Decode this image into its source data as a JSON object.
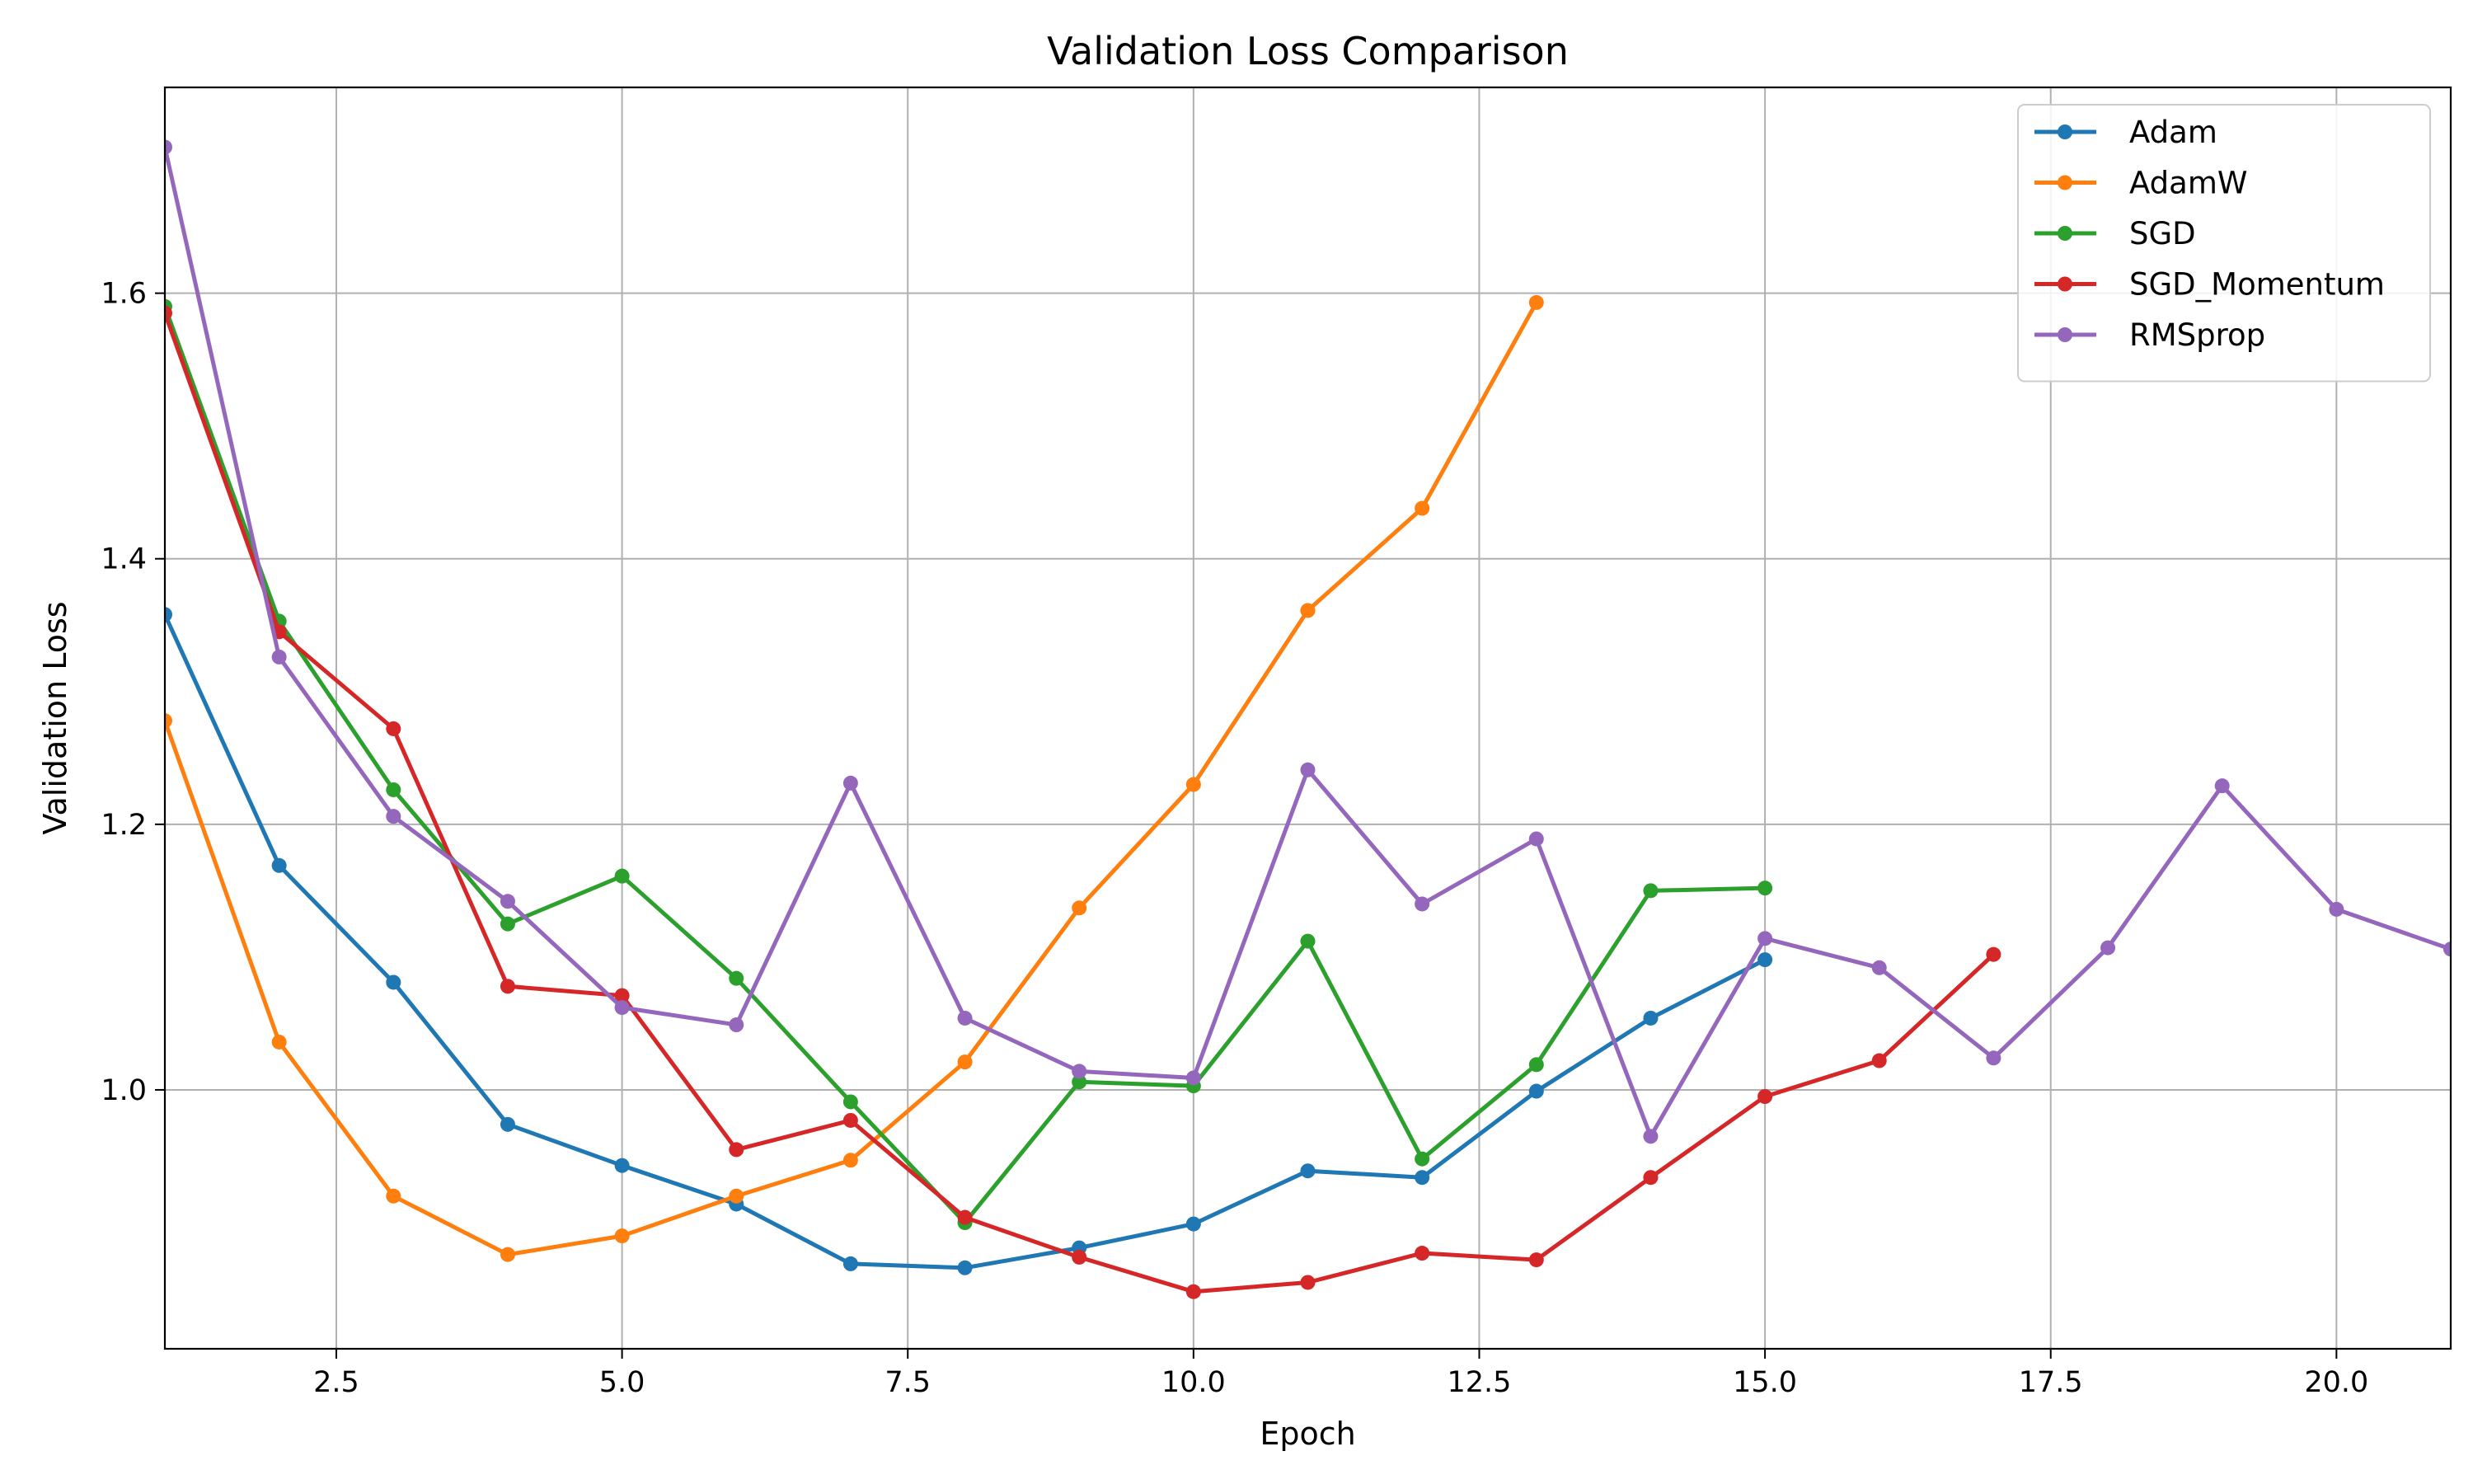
{
  "chart_data": {
    "type": "line",
    "title": "Validation Loss Comparison",
    "xlabel": "Epoch",
    "ylabel": "Validation Loss",
    "xlim": [
      1,
      21
    ],
    "ylim": [
      0.805,
      1.755
    ],
    "xticks": [
      2.5,
      5.0,
      7.5,
      10.0,
      12.5,
      15.0,
      17.5,
      20.0
    ],
    "xtick_labels": [
      "2.5",
      "5.0",
      "7.5",
      "10.0",
      "12.5",
      "15.0",
      "17.5",
      "20.0"
    ],
    "yticks": [
      1.0,
      1.2,
      1.4,
      1.6
    ],
    "ytick_labels": [
      "1.0",
      "1.2",
      "1.4",
      "1.6"
    ],
    "grid": true,
    "legend_position": "top-right",
    "series": [
      {
        "name": "Adam",
        "color": "#1f77b4",
        "x": [
          1,
          2,
          3,
          4,
          5,
          6,
          7,
          8,
          9,
          10,
          11,
          12,
          13,
          14,
          15
        ],
        "y": [
          1.358,
          1.169,
          1.081,
          0.974,
          0.943,
          0.914,
          0.869,
          0.866,
          0.881,
          0.899,
          0.939,
          0.934,
          0.999,
          1.054,
          1.098
        ]
      },
      {
        "name": "AdamW",
        "color": "#ff7f0e",
        "x": [
          1,
          2,
          3,
          4,
          5,
          6,
          7,
          8,
          9,
          10,
          11,
          12,
          13
        ],
        "y": [
          1.278,
          1.036,
          0.92,
          0.876,
          0.89,
          0.92,
          0.947,
          1.021,
          1.137,
          1.23,
          1.361,
          1.438,
          1.593
        ]
      },
      {
        "name": "SGD",
        "color": "#2ca02c",
        "x": [
          1,
          2,
          3,
          4,
          5,
          6,
          7,
          8,
          9,
          10,
          11,
          12,
          13,
          14,
          15
        ],
        "y": [
          1.59,
          1.353,
          1.226,
          1.125,
          1.161,
          1.084,
          0.991,
          0.9,
          1.006,
          1.003,
          1.112,
          0.948,
          1.019,
          1.15,
          1.152
        ]
      },
      {
        "name": "SGD_Momentum",
        "color": "#d62728",
        "x": [
          1,
          2,
          3,
          4,
          5,
          6,
          7,
          8,
          9,
          10,
          11,
          12,
          13,
          14,
          15,
          16,
          17
        ],
        "y": [
          1.585,
          1.345,
          1.272,
          1.078,
          1.071,
          0.955,
          0.977,
          0.904,
          0.874,
          0.848,
          0.855,
          0.877,
          0.872,
          0.934,
          0.995,
          1.022,
          1.102
        ]
      },
      {
        "name": "RMSprop",
        "color": "#9467bd",
        "x": [
          1,
          2,
          3,
          4,
          5,
          6,
          7,
          8,
          9,
          10,
          11,
          12,
          13,
          14,
          15,
          16,
          17,
          18,
          19,
          20,
          21
        ],
        "y": [
          1.71,
          1.326,
          1.206,
          1.142,
          1.062,
          1.049,
          1.231,
          1.054,
          1.014,
          1.009,
          1.241,
          1.14,
          1.189,
          0.965,
          1.114,
          1.092,
          1.024,
          1.107,
          1.229,
          1.136,
          1.106
        ]
      }
    ]
  }
}
